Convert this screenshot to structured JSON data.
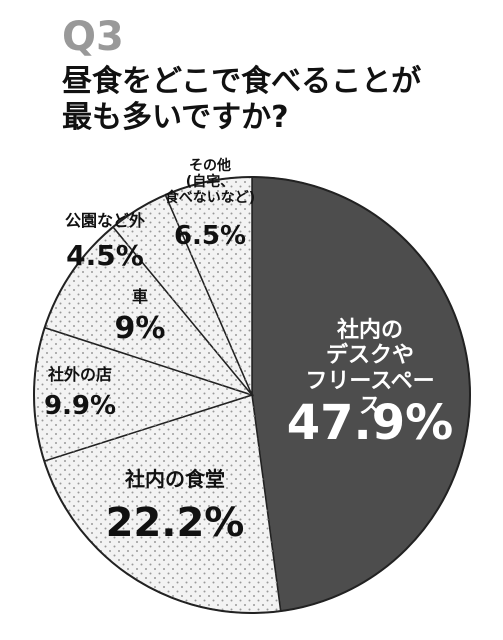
{
  "chart_data": {
    "type": "pie",
    "heading": "Q3",
    "title": "昼食をどこで食べることが\n最も多いですか?",
    "categories": [
      "社内の\nデスクや\nフリースペース",
      "社内の食堂",
      "社外の店",
      "車",
      "公園など外",
      "その他\n(自宅、\n食べないなど)"
    ],
    "values": [
      47.9,
      22.2,
      9.9,
      9,
      4.5,
      6.5
    ],
    "value_labels": [
      "47.9%",
      "22.2%",
      "9.9%",
      "9%",
      "4.5%",
      "6.5%"
    ],
    "colors": [
      "#4d4d4d",
      "#f3f3f3",
      "#f3f3f3",
      "#f3f3f3",
      "#f3f3f3",
      "#f3f3f3"
    ]
  }
}
